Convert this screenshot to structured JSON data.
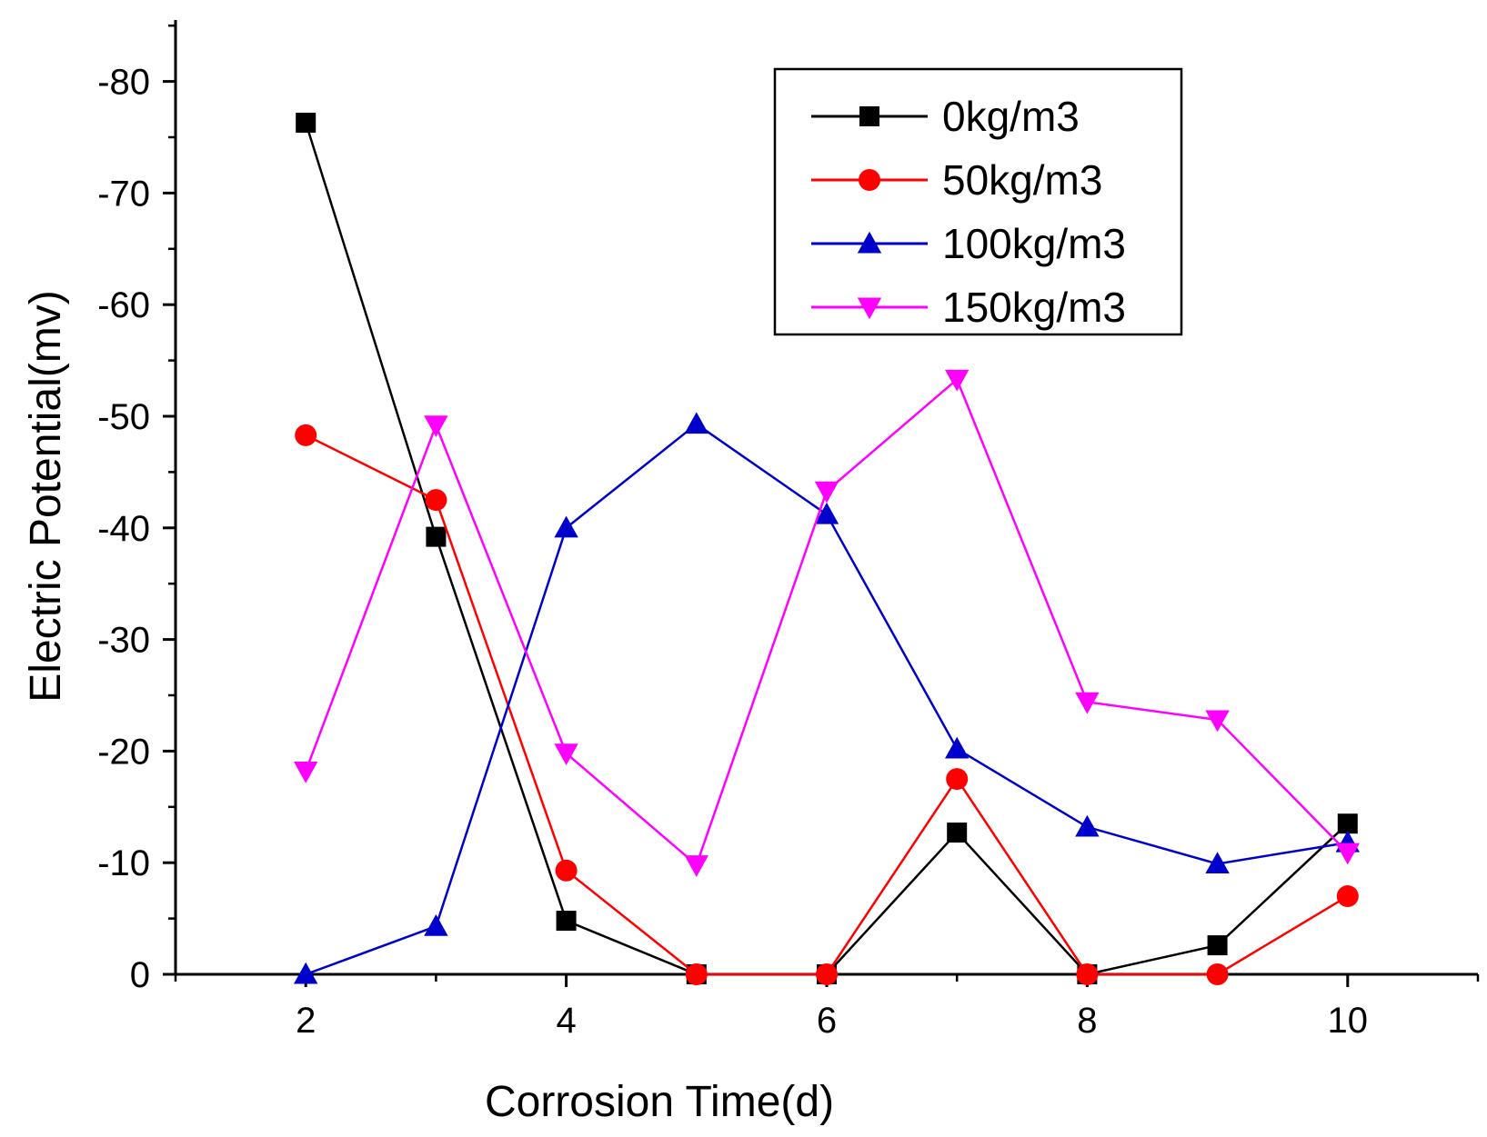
{
  "chart_data": {
    "type": "line",
    "title": "",
    "xlabel": "Corrosion Time(d)",
    "ylabel": "Electric Potential(mv)",
    "xlim": [
      1,
      11
    ],
    "ylim": [
      0,
      -85
    ],
    "x_ticks": [
      2,
      4,
      6,
      8,
      10
    ],
    "y_ticks": [
      0,
      -10,
      -20,
      -30,
      -40,
      -50,
      -60,
      -70,
      -80
    ],
    "x_tick_labels": [
      "2",
      "4",
      "6",
      "8",
      "10"
    ],
    "y_tick_labels": [
      "0",
      "-10",
      "-20",
      "-30",
      "-40",
      "-50",
      "-60",
      "-70",
      "-80"
    ],
    "grid": false,
    "legend_position": "top-right",
    "x": [
      2,
      3,
      4,
      5,
      6,
      7,
      8,
      9,
      10
    ],
    "series": [
      {
        "name": "0kg/m3",
        "color": "#000000",
        "marker": "square",
        "values": [
          -76.3,
          -39.2,
          -4.8,
          0,
          0,
          -12.7,
          0,
          -2.6,
          -13.5
        ]
      },
      {
        "name": "50kg/m3",
        "color": "#ff0000",
        "marker": "circle",
        "values": [
          -48.3,
          -42.5,
          -9.3,
          0,
          0,
          -17.5,
          0,
          0,
          -7.0
        ]
      },
      {
        "name": "100kg/m3",
        "color": "#0000cc",
        "marker": "triangle-up",
        "values": [
          0,
          -4.3,
          -40.0,
          -49.3,
          -41.2,
          -20.2,
          -13.2,
          -9.9,
          -11.8
        ]
      },
      {
        "name": "150kg/m3",
        "color": "#ff00ff",
        "marker": "triangle-down",
        "values": [
          -18.2,
          -49.2,
          -19.8,
          -9.8,
          -43.3,
          -53.3,
          -24.4,
          -22.8,
          -10.9
        ]
      }
    ]
  }
}
